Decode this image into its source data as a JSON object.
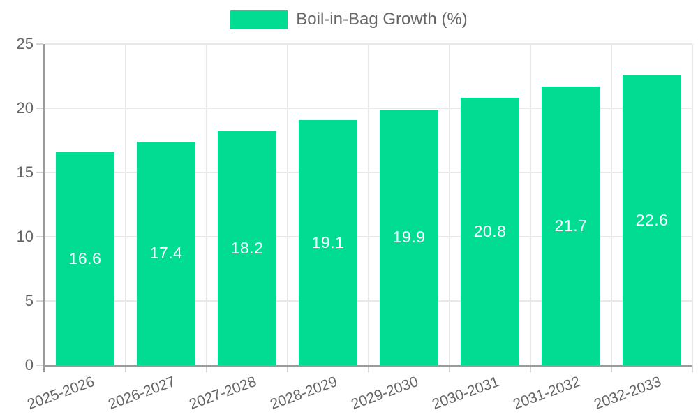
{
  "chart_data": {
    "type": "bar",
    "title": "",
    "legend_label": "Boil-in-Bag Growth (%)",
    "legend_position": "top",
    "categories": [
      "2025-2026",
      "2026-2027",
      "2027-2028",
      "2028-2029",
      "2029-2030",
      "2030-2031",
      "2031-2032",
      "2032-2033"
    ],
    "values": [
      16.6,
      17.4,
      18.2,
      19.1,
      19.9,
      20.8,
      21.7,
      22.6
    ],
    "xlabel": "",
    "ylabel": "",
    "ylim": [
      0,
      25
    ],
    "yticks": [
      0,
      5,
      10,
      15,
      20,
      25
    ],
    "grid": true,
    "value_labels_shown": true,
    "x_label_rotation_deg": -20,
    "colors": {
      "bar": "#00dc92",
      "bar_value_text": "#ffffff",
      "grid": "#e8e8e8",
      "axis": "#9a9a9a",
      "tick": "#d4d4d4",
      "label_text": "#666666"
    }
  }
}
